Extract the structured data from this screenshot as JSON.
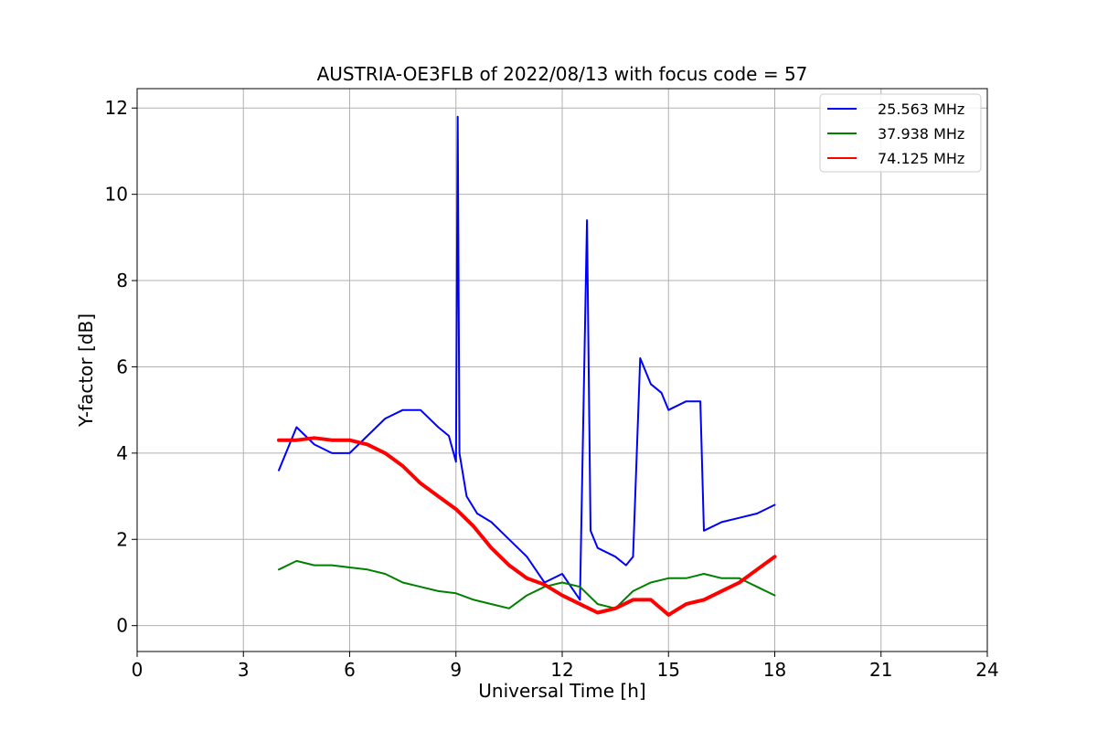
{
  "chart_data": {
    "type": "line",
    "title": "AUSTRIA-OE3FLB of 2022/08/13 with focus code = 57",
    "xlabel": "Universal Time [h]",
    "ylabel": "Y-factor [dB]",
    "xlim": [
      0,
      24
    ],
    "ylim": [
      -0.6,
      12.45
    ],
    "xticks": [
      0,
      3,
      6,
      9,
      12,
      15,
      18,
      21,
      24
    ],
    "yticks": [
      0,
      2,
      4,
      6,
      8,
      10,
      12
    ],
    "xtick_labels": [
      "0",
      "3",
      "6",
      "9",
      "12",
      "15",
      "18",
      "21",
      "24"
    ],
    "ytick_labels": [
      "0",
      "2",
      "4",
      "6",
      "8",
      "10",
      "12"
    ],
    "grid": true,
    "legend_position": "upper-right",
    "series": [
      {
        "name": "25.563 MHz",
        "color": "#0000ff",
        "x": [
          4.0,
          4.5,
          5.0,
          5.5,
          6.0,
          6.5,
          7.0,
          7.5,
          8.0,
          8.5,
          8.8,
          9.0,
          9.05,
          9.1,
          9.3,
          9.6,
          10.0,
          10.5,
          11.0,
          11.5,
          12.0,
          12.5,
          12.7,
          12.8,
          13.0,
          13.5,
          13.8,
          14.0,
          14.2,
          14.5,
          14.8,
          15.0,
          15.5,
          15.9,
          16.0,
          16.5,
          17.0,
          17.5,
          18.0
        ],
        "y": [
          3.6,
          4.6,
          4.2,
          4.0,
          4.0,
          4.4,
          4.8,
          5.0,
          5.0,
          4.6,
          4.4,
          3.8,
          11.8,
          4.0,
          3.0,
          2.6,
          2.4,
          2.0,
          1.6,
          1.0,
          1.2,
          0.6,
          9.4,
          2.2,
          1.8,
          1.6,
          1.4,
          1.6,
          6.2,
          5.6,
          5.4,
          5.0,
          5.2,
          5.2,
          2.2,
          2.4,
          2.5,
          2.6,
          2.8
        ]
      },
      {
        "name": "37.938 MHz",
        "color": "#008000",
        "x": [
          4.0,
          4.5,
          5.0,
          5.5,
          6.0,
          6.5,
          7.0,
          7.5,
          8.0,
          8.5,
          9.0,
          9.5,
          10.0,
          10.5,
          11.0,
          11.5,
          12.0,
          12.5,
          13.0,
          13.5,
          14.0,
          14.5,
          15.0,
          15.5,
          16.0,
          16.5,
          17.0,
          17.5,
          18.0
        ],
        "y": [
          1.3,
          1.5,
          1.4,
          1.4,
          1.35,
          1.3,
          1.2,
          1.0,
          0.9,
          0.8,
          0.75,
          0.6,
          0.5,
          0.4,
          0.7,
          0.9,
          1.0,
          0.9,
          0.5,
          0.4,
          0.8,
          1.0,
          1.1,
          1.1,
          1.2,
          1.1,
          1.1,
          0.9,
          0.7
        ]
      },
      {
        "name": "74.125 MHz",
        "color": "#ff0000",
        "x": [
          4.0,
          4.5,
          5.0,
          5.5,
          6.0,
          6.5,
          7.0,
          7.5,
          8.0,
          8.5,
          9.0,
          9.5,
          10.0,
          10.5,
          11.0,
          11.5,
          12.0,
          12.5,
          13.0,
          13.5,
          14.0,
          14.5,
          15.0,
          15.5,
          16.0,
          16.5,
          17.0,
          17.5,
          18.0
        ],
        "y": [
          4.3,
          4.3,
          4.35,
          4.3,
          4.3,
          4.2,
          4.0,
          3.7,
          3.3,
          3.0,
          2.7,
          2.3,
          1.8,
          1.4,
          1.1,
          0.95,
          0.7,
          0.5,
          0.3,
          0.4,
          0.6,
          0.6,
          0.25,
          0.5,
          0.6,
          0.8,
          1.0,
          1.3,
          1.6
        ]
      }
    ]
  }
}
